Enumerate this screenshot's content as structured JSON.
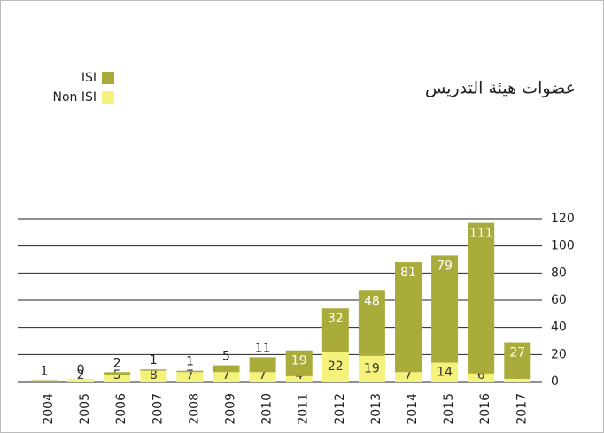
{
  "chart_data": {
    "type": "stacked_bar",
    "title": "عضوات هيئة التدريس",
    "categories": [
      "2004",
      "2005",
      "2006",
      "2007",
      "2008",
      "2009",
      "2010",
      "2011",
      "2012",
      "2013",
      "2014",
      "2015",
      "2016",
      "2017"
    ],
    "series": [
      {
        "name": "Non ISI",
        "color": "#f4f27a",
        "values": [
          null,
          2,
          5,
          8,
          7,
          7,
          7,
          4,
          22,
          19,
          7,
          14,
          6,
          2
        ]
      },
      {
        "name": "ISI",
        "color": "#a9ac3a",
        "values": [
          1,
          0,
          2,
          1,
          1,
          5,
          11,
          19,
          32,
          48,
          81,
          79,
          111,
          27
        ]
      }
    ],
    "ylim": [
      0,
      120
    ],
    "yticks": [
      0,
      20,
      40,
      60,
      80,
      100,
      120
    ],
    "grid": true,
    "legend": "top-left"
  }
}
